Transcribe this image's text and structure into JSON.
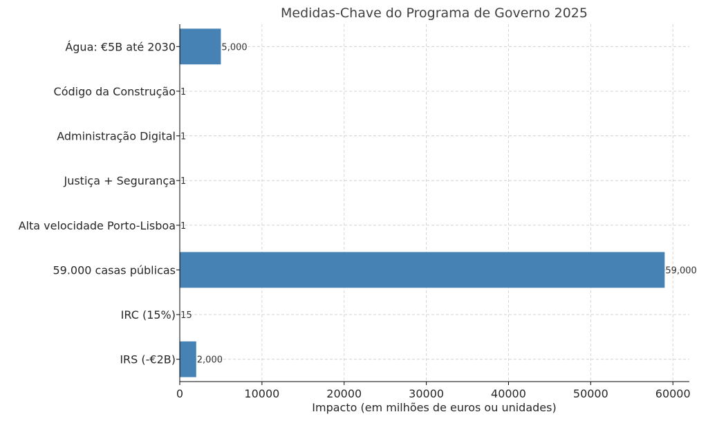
{
  "chart_data": {
    "type": "bar",
    "orientation": "horizontal",
    "title": "Medidas-Chave do Programa de Governo 2025",
    "xlabel": "Impacto (em milhões de euros ou unidades)",
    "ylabel": "",
    "categories": [
      "IRS (-€2B)",
      "IRC (15%)",
      "59.000 casas públicas",
      "Alta velocidade Porto-Lisboa",
      "Justiça + Segurança",
      "Administração Digital",
      "Código da Construção",
      "Água: €5B até 2030"
    ],
    "values": [
      2000,
      15,
      59000,
      1,
      1,
      1,
      1,
      5000
    ],
    "data_labels": [
      "2,000",
      "15",
      "59,000",
      "1",
      "1",
      "1",
      "1",
      "5,000"
    ],
    "xlim": [
      0,
      62000
    ],
    "xticks": [
      0,
      10000,
      20000,
      30000,
      40000,
      50000,
      60000
    ],
    "xtick_labels": [
      "0",
      "10000",
      "20000",
      "30000",
      "40000",
      "50000",
      "60000"
    ],
    "bar_color": "#4682b4",
    "grid": true
  }
}
